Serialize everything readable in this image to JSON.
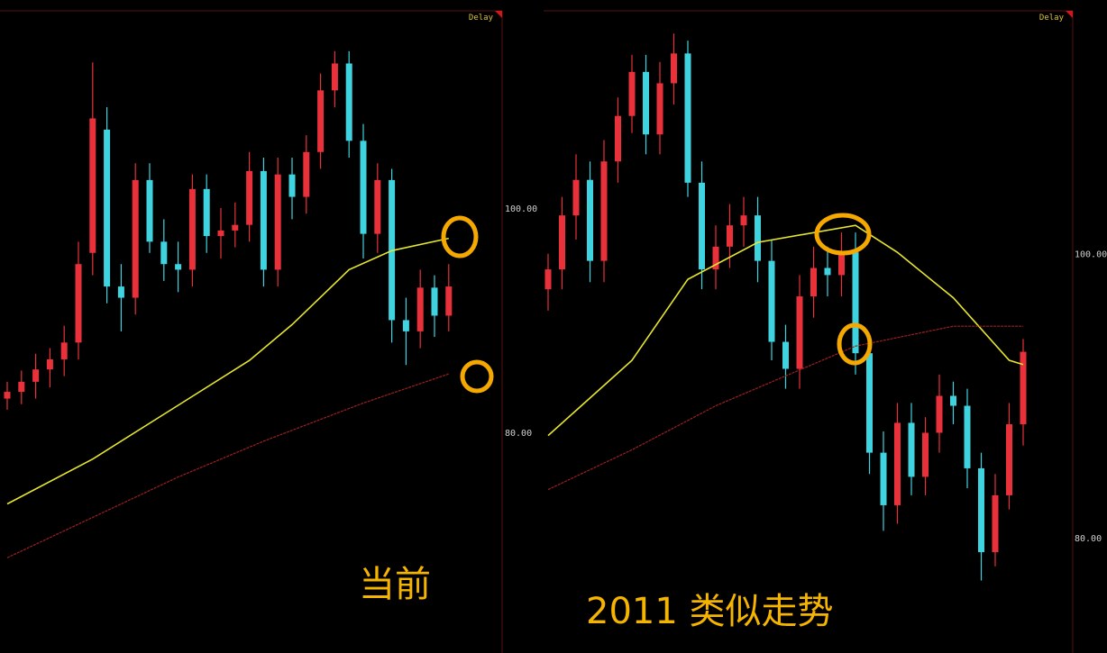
{
  "chart_data": [
    {
      "type": "candlestick",
      "tag": "Delay",
      "annotation": "当前",
      "ylim": [
        60.3,
        117.6
      ],
      "yticks": [
        {
          "value": 100,
          "label": "100.00"
        },
        {
          "value": 80,
          "label": "80.00"
        }
      ],
      "up_color": "#e8313a",
      "down_color": "#3fd3e0",
      "open": [
        83.0,
        83.6,
        84.5,
        85.6,
        86.5,
        88.0,
        96.0,
        107.0,
        93.0,
        92.0,
        102.5,
        97.0,
        95.0,
        94.5,
        101.7,
        97.5,
        98.0,
        98.5,
        103.3,
        94.5,
        103.0,
        101.0,
        105.0,
        110.5,
        112.9,
        106.0,
        97.7,
        102.5,
        90.0,
        89.0,
        92.9,
        90.4
      ],
      "high": [
        84.5,
        85.5,
        87.0,
        87.5,
        89.5,
        97.0,
        113.0,
        109.0,
        95.0,
        104.0,
        104.0,
        99.0,
        97.0,
        103.0,
        103.0,
        100.0,
        100.5,
        105.0,
        104.5,
        104.5,
        104.5,
        106.5,
        112.0,
        114.0,
        114.0,
        107.5,
        104.0,
        103.5,
        92.0,
        94.5,
        94.0,
        95.0
      ],
      "low": [
        82.0,
        82.5,
        83.0,
        84.0,
        85.0,
        86.5,
        94.0,
        91.5,
        89.0,
        90.5,
        96.0,
        93.5,
        92.5,
        93.0,
        96.0,
        95.5,
        96.5,
        97.0,
        93.0,
        93.0,
        99.0,
        99.5,
        103.5,
        109.0,
        104.5,
        95.5,
        96.0,
        88.0,
        86.0,
        87.5,
        88.5,
        89.0
      ],
      "close": [
        83.6,
        84.5,
        85.6,
        86.5,
        88.0,
        95.0,
        108.0,
        93.0,
        92.0,
        102.5,
        97.0,
        95.0,
        94.5,
        101.7,
        97.5,
        98.0,
        98.5,
        103.3,
        94.5,
        103.0,
        101.0,
        105.0,
        110.5,
        112.9,
        106.0,
        97.7,
        102.5,
        90.0,
        89.0,
        92.9,
        90.4,
        93.0
      ],
      "lines": [
        {
          "color": "#e6e62e",
          "x": [
            0,
            6,
            12,
            17,
            20,
            24,
            27,
            31
          ],
          "values": [
            73.6,
            77.6,
            82.4,
            86.4,
            89.6,
            94.5,
            96.2,
            97.3
          ]
        },
        {
          "color": "#9c2020",
          "x": [
            0,
            6,
            12,
            18,
            25,
            31
          ],
          "values": [
            68.8,
            72.4,
            76.0,
            79.2,
            82.6,
            85.2
          ]
        }
      ]
    },
    {
      "type": "candlestick",
      "tag": "Delay",
      "annotation": "2011 类似走势",
      "ylim": [
        71.9,
        117.1
      ],
      "yticks": [
        {
          "value": 100,
          "label": "100.00"
        },
        {
          "value": 80,
          "label": "80.00"
        }
      ],
      "up_color": "#e8313a",
      "down_color": "#3fd3e0",
      "open": [
        97.5,
        98.9,
        102.7,
        105.2,
        99.5,
        106.5,
        109.7,
        112.8,
        108.4,
        112.0,
        114.1,
        105.0,
        98.9,
        100.5,
        102.0,
        102.7,
        99.5,
        93.8,
        91.9,
        97.0,
        99.0,
        98.5,
        100.1,
        93.0,
        86.0,
        82.3,
        88.1,
        84.3,
        87.4,
        90.0,
        89.3,
        84.9,
        79.0,
        83.0,
        88.0
      ],
      "high": [
        100.0,
        104.0,
        107.0,
        106.5,
        108.0,
        111.0,
        114.0,
        114.0,
        113.5,
        115.5,
        115.0,
        106.5,
        102.0,
        103.5,
        104.0,
        104.0,
        101.0,
        95.0,
        98.5,
        100.5,
        100.5,
        101.5,
        101.5,
        94.0,
        87.5,
        89.5,
        89.5,
        88.5,
        91.5,
        91.0,
        90.5,
        86.0,
        84.5,
        89.5,
        94.0
      ],
      "low": [
        96.0,
        97.5,
        101.0,
        98.0,
        98.0,
        105.0,
        108.5,
        107.0,
        107.0,
        110.5,
        104.0,
        97.5,
        97.5,
        99.0,
        100.5,
        98.0,
        92.5,
        90.5,
        90.5,
        95.5,
        97.0,
        97.0,
        91.5,
        84.5,
        80.5,
        81.0,
        83.0,
        83.0,
        86.0,
        88.0,
        83.5,
        77.0,
        78.0,
        82.0,
        86.5
      ],
      "close": [
        98.9,
        102.7,
        105.2,
        99.5,
        106.5,
        109.7,
        112.8,
        108.4,
        112.0,
        114.1,
        105.0,
        98.9,
        100.5,
        102.0,
        102.7,
        99.5,
        93.8,
        91.9,
        97.0,
        99.0,
        98.5,
        100.1,
        93.0,
        86.0,
        82.3,
        88.1,
        84.3,
        87.4,
        90.0,
        89.3,
        84.9,
        79.0,
        83.0,
        88.0,
        93.1
      ],
      "lines": [
        {
          "color": "#e6e62e",
          "x": [
            0,
            6,
            10,
            15,
            22,
            25,
            29,
            33,
            34
          ],
          "values": [
            87.2,
            92.5,
            98.2,
            100.8,
            102.0,
            100.1,
            96.9,
            92.5,
            92.2
          ]
        },
        {
          "color": "#9c2020",
          "x": [
            0,
            6,
            12,
            22,
            29,
            34
          ],
          "values": [
            83.4,
            86.2,
            89.3,
            93.5,
            94.9,
            94.9
          ]
        }
      ]
    }
  ]
}
